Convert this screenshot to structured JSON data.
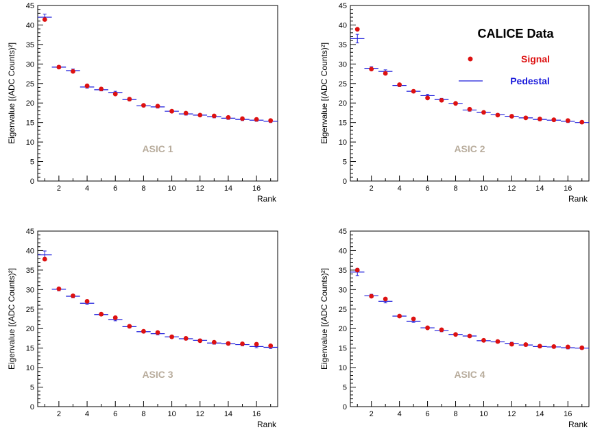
{
  "legend": {
    "title": "CALICE Data",
    "signal_label": "Signal",
    "pedestal_label": "Pedestal",
    "signal_color": "#dd1111",
    "pedestal_color": "#1a1adb"
  },
  "colors": {
    "asic_label": "#b8ac9c",
    "axis": "#000000"
  },
  "chart_data": [
    {
      "type": "scatter",
      "annotation": "ASIC 1",
      "xlabel": "Rank",
      "ylabel": "Eigenvalue [(ADC Counts)²]",
      "xlim": [
        0.5,
        17.5
      ],
      "ylim": [
        0,
        45
      ],
      "xticks": [
        2,
        4,
        6,
        8,
        10,
        12,
        14,
        16
      ],
      "yticks": [
        0,
        5,
        10,
        15,
        20,
        25,
        30,
        35,
        40,
        45
      ],
      "x": [
        1,
        2,
        3,
        4,
        5,
        6,
        7,
        8,
        9,
        10,
        11,
        12,
        13,
        14,
        15,
        16,
        17
      ],
      "series": [
        {
          "name": "Signal",
          "values": [
            41.4,
            29.2,
            28.1,
            24.4,
            23.6,
            22.3,
            21.0,
            19.4,
            19.2,
            17.9,
            17.4,
            16.9,
            16.7,
            16.3,
            16.0,
            15.8,
            15.5
          ]
        },
        {
          "name": "Pedestal",
          "values": [
            42.0,
            29.2,
            28.3,
            24.1,
            23.4,
            22.7,
            20.9,
            19.3,
            19.0,
            17.9,
            17.2,
            16.9,
            16.5,
            16.1,
            15.8,
            15.6,
            15.3
          ],
          "yerr": [
            0.8,
            0.4,
            0.4,
            0.3,
            0.3,
            0.3,
            0.3,
            0.3,
            0.3,
            0.3,
            0.3,
            0.3,
            0.3,
            0.3,
            0.3,
            0.3,
            0.3
          ]
        }
      ]
    },
    {
      "type": "scatter",
      "annotation": "ASIC 2",
      "xlabel": "Rank",
      "ylabel": "Eigenvalue [(ADC Counts)²]",
      "xlim": [
        0.5,
        17.5
      ],
      "ylim": [
        0,
        45
      ],
      "xticks": [
        2,
        4,
        6,
        8,
        10,
        12,
        14,
        16
      ],
      "yticks": [
        0,
        5,
        10,
        15,
        20,
        25,
        30,
        35,
        40,
        45
      ],
      "x": [
        1,
        2,
        3,
        4,
        5,
        6,
        7,
        8,
        9,
        10,
        11,
        12,
        13,
        14,
        15,
        16,
        17
      ],
      "series": [
        {
          "name": "Signal",
          "values": [
            38.9,
            28.7,
            27.6,
            24.7,
            23.0,
            21.3,
            20.7,
            19.9,
            18.4,
            17.6,
            16.9,
            16.6,
            16.2,
            15.9,
            15.7,
            15.5,
            15.1
          ]
        },
        {
          "name": "Pedestal",
          "values": [
            36.5,
            28.9,
            28.1,
            24.5,
            23.0,
            21.9,
            20.9,
            19.9,
            18.2,
            17.6,
            17.0,
            16.6,
            16.2,
            15.8,
            15.6,
            15.3,
            15.0
          ],
          "yerr": [
            1.1,
            0.4,
            0.4,
            0.3,
            0.3,
            0.3,
            0.3,
            0.3,
            0.3,
            0.3,
            0.3,
            0.3,
            0.3,
            0.3,
            0.3,
            0.3,
            0.3
          ]
        }
      ]
    },
    {
      "type": "scatter",
      "annotation": "ASIC 3",
      "xlabel": "Rank",
      "ylabel": "Eigenvalue [(ADC Counts)²]",
      "xlim": [
        0.5,
        17.5
      ],
      "ylim": [
        0,
        45
      ],
      "xticks": [
        2,
        4,
        6,
        8,
        10,
        12,
        14,
        16
      ],
      "yticks": [
        0,
        5,
        10,
        15,
        20,
        25,
        30,
        35,
        40,
        45
      ],
      "x": [
        1,
        2,
        3,
        4,
        5,
        6,
        7,
        8,
        9,
        10,
        11,
        12,
        13,
        14,
        15,
        16,
        17
      ],
      "series": [
        {
          "name": "Signal",
          "values": [
            37.8,
            30.2,
            28.4,
            27.0,
            23.7,
            22.8,
            20.6,
            19.3,
            19.0,
            17.9,
            17.5,
            16.9,
            16.5,
            16.2,
            16.1,
            16.0,
            15.6
          ]
        },
        {
          "name": "Pedestal",
          "values": [
            38.9,
            30.1,
            28.3,
            26.5,
            23.6,
            22.3,
            20.5,
            19.2,
            18.7,
            17.9,
            17.4,
            17.0,
            16.3,
            16.1,
            15.9,
            15.4,
            15.2
          ],
          "yerr": [
            1.0,
            0.4,
            0.4,
            0.3,
            0.3,
            0.3,
            0.3,
            0.3,
            0.3,
            0.3,
            0.3,
            0.3,
            0.3,
            0.3,
            0.3,
            0.3,
            0.3
          ]
        }
      ]
    },
    {
      "type": "scatter",
      "annotation": "ASIC 4",
      "xlabel": "Rank",
      "ylabel": "Eigenvalue [(ADC Counts)²]",
      "xlim": [
        0.5,
        17.5
      ],
      "ylim": [
        0,
        45
      ],
      "xticks": [
        2,
        4,
        6,
        8,
        10,
        12,
        14,
        16
      ],
      "yticks": [
        0,
        5,
        10,
        15,
        20,
        25,
        30,
        35,
        40,
        45
      ],
      "x": [
        1,
        2,
        3,
        4,
        5,
        6,
        7,
        8,
        9,
        10,
        11,
        12,
        13,
        14,
        15,
        16,
        17
      ],
      "series": [
        {
          "name": "Signal",
          "values": [
            35.0,
            28.3,
            27.6,
            23.2,
            22.5,
            20.2,
            19.7,
            18.5,
            18.1,
            17.0,
            16.7,
            16.0,
            15.9,
            15.5,
            15.4,
            15.3,
            15.1
          ]
        },
        {
          "name": "Pedestal",
          "values": [
            34.5,
            28.4,
            27.0,
            23.2,
            21.9,
            20.2,
            19.5,
            18.5,
            18.1,
            16.9,
            16.6,
            16.2,
            15.8,
            15.4,
            15.3,
            15.1,
            15.0
          ],
          "yerr": [
            0.9,
            0.4,
            0.4,
            0.3,
            0.3,
            0.3,
            0.3,
            0.3,
            0.3,
            0.3,
            0.3,
            0.3,
            0.3,
            0.3,
            0.3,
            0.3,
            0.3
          ]
        }
      ]
    }
  ]
}
